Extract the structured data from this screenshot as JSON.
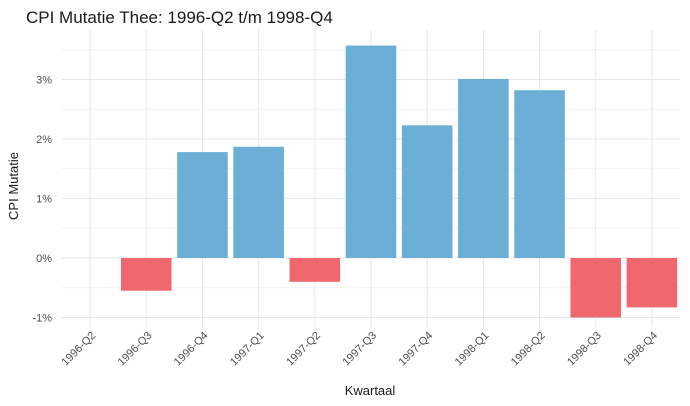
{
  "chart_data": {
    "type": "bar",
    "title": "CPI Mutatie Thee: 1996-Q2 t/m 1998-Q4",
    "xlabel": "Kwartaal",
    "ylabel": "CPI Mutatie",
    "categories": [
      "1996-Q2",
      "1996-Q3",
      "1996-Q4",
      "1997-Q1",
      "1997-Q2",
      "1997-Q3",
      "1997-Q4",
      "1998-Q1",
      "1998-Q2",
      "1998-Q3",
      "1998-Q4"
    ],
    "values": [
      0,
      -0.55,
      1.78,
      1.87,
      -0.4,
      3.57,
      2.23,
      3.01,
      2.82,
      -1.0,
      -0.83
    ],
    "ylim": [
      -1.3,
      3.7
    ],
    "yticks": [
      -1,
      0,
      1,
      2,
      3
    ],
    "ytick_labels": [
      "-1%",
      "0%",
      "1%",
      "2%",
      "3%"
    ],
    "grid": true,
    "colors": {
      "positive": "#6baed6",
      "negative": "#f0686e",
      "grid_major": "#e6e6e6",
      "grid_minor": "#f2f2f2"
    }
  }
}
